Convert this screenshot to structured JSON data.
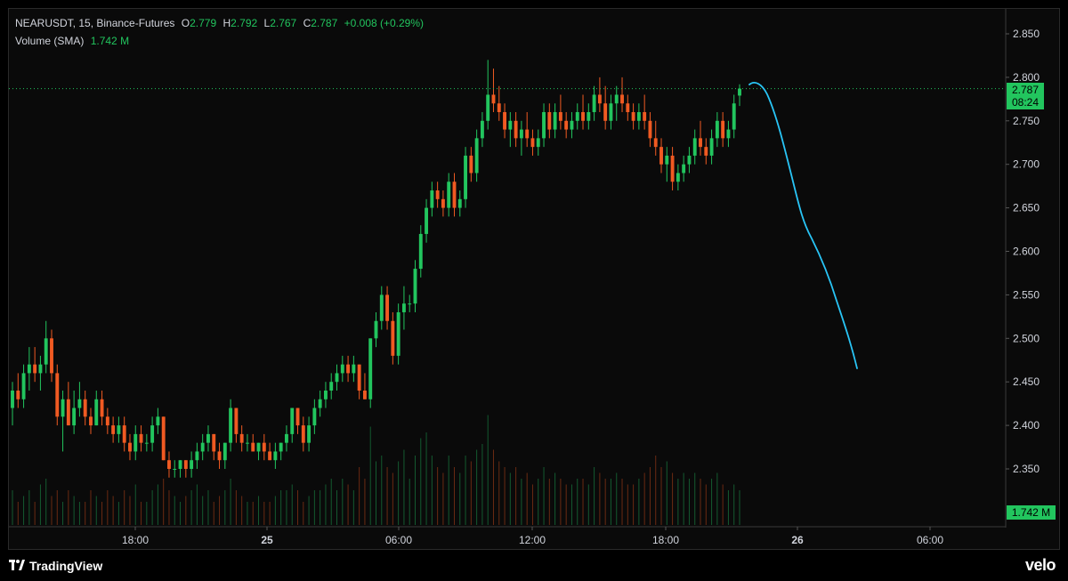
{
  "header": {
    "symbol": "NEARUSDT, 15, Binance-Futures",
    "open_label": "O",
    "open_value": "2.779",
    "high_label": "H",
    "high_value": "2.792",
    "low_label": "L",
    "low_value": "2.767",
    "close_label": "C",
    "close_value": "2.787",
    "change": "+0.008 (+0.29%)",
    "volume_label": "Volume (SMA)",
    "volume_value": "1.742 M"
  },
  "price_axis": {
    "ticks": [
      "2.850",
      "2.800",
      "2.750",
      "2.700",
      "2.650",
      "2.600",
      "2.550",
      "2.500",
      "2.450",
      "2.400",
      "2.350"
    ],
    "current_price": "2.787",
    "countdown": "08:24",
    "volume_tag": "1.742 M"
  },
  "time_axis": {
    "labels": [
      "18:00",
      "25",
      "06:00",
      "12:00",
      "18:00",
      "26",
      "06:00"
    ]
  },
  "colors": {
    "up": "#22c55e",
    "down": "#f05a22",
    "drawing": "#29c5f6",
    "background": "#0a0a0a",
    "price_line": "#22c55e"
  },
  "footer": {
    "brand_left": "TradingView",
    "brand_left_icon": "tradingview-logo-icon",
    "brand_right": "velo"
  },
  "chart_data": {
    "type": "candlestick",
    "symbol": "NEARUSDT",
    "interval": "15",
    "exchange": "Binance-Futures",
    "ylim": [
      2.33,
      2.87
    ],
    "candles": [
      [
        2.42,
        2.45,
        2.4,
        2.44
      ],
      [
        2.44,
        2.46,
        2.42,
        2.43
      ],
      [
        2.43,
        2.47,
        2.42,
        2.46
      ],
      [
        2.46,
        2.49,
        2.44,
        2.47
      ],
      [
        2.47,
        2.49,
        2.45,
        2.46
      ],
      [
        2.46,
        2.48,
        2.44,
        2.47
      ],
      [
        2.47,
        2.52,
        2.46,
        2.5
      ],
      [
        2.5,
        2.51,
        2.45,
        2.46
      ],
      [
        2.46,
        2.47,
        2.4,
        2.41
      ],
      [
        2.41,
        2.44,
        2.37,
        2.43
      ],
      [
        2.43,
        2.45,
        2.4,
        2.4
      ],
      [
        2.4,
        2.44,
        2.39,
        2.42
      ],
      [
        2.42,
        2.45,
        2.41,
        2.43
      ],
      [
        2.43,
        2.44,
        2.4,
        2.41
      ],
      [
        2.41,
        2.42,
        2.39,
        2.4
      ],
      [
        2.4,
        2.44,
        2.4,
        2.43
      ],
      [
        2.43,
        2.44,
        2.4,
        2.41
      ],
      [
        2.41,
        2.42,
        2.39,
        2.4
      ],
      [
        2.4,
        2.41,
        2.38,
        2.39
      ],
      [
        2.39,
        2.41,
        2.38,
        2.4
      ],
      [
        2.4,
        2.41,
        2.37,
        2.38
      ],
      [
        2.38,
        2.39,
        2.36,
        2.37
      ],
      [
        2.37,
        2.4,
        2.36,
        2.39
      ],
      [
        2.39,
        2.4,
        2.37,
        2.38
      ],
      [
        2.38,
        2.39,
        2.37,
        2.38
      ],
      [
        2.38,
        2.41,
        2.37,
        2.4
      ],
      [
        2.4,
        2.42,
        2.39,
        2.41
      ],
      [
        2.41,
        2.41,
        2.36,
        2.36
      ],
      [
        2.36,
        2.37,
        2.34,
        2.35
      ],
      [
        2.35,
        2.36,
        2.34,
        2.35
      ],
      [
        2.35,
        2.36,
        2.34,
        2.36
      ],
      [
        2.36,
        2.36,
        2.34,
        2.35
      ],
      [
        2.35,
        2.37,
        2.34,
        2.36
      ],
      [
        2.36,
        2.38,
        2.35,
        2.37
      ],
      [
        2.37,
        2.39,
        2.36,
        2.38
      ],
      [
        2.38,
        2.4,
        2.37,
        2.39
      ],
      [
        2.39,
        2.39,
        2.36,
        2.37
      ],
      [
        2.37,
        2.38,
        2.35,
        2.36
      ],
      [
        2.36,
        2.38,
        2.35,
        2.38
      ],
      [
        2.38,
        2.43,
        2.37,
        2.42
      ],
      [
        2.42,
        2.42,
        2.38,
        2.39
      ],
      [
        2.39,
        2.4,
        2.37,
        2.38
      ],
      [
        2.38,
        2.39,
        2.37,
        2.38
      ],
      [
        2.38,
        2.39,
        2.37,
        2.37
      ],
      [
        2.37,
        2.38,
        2.36,
        2.38
      ],
      [
        2.38,
        2.39,
        2.36,
        2.37
      ],
      [
        2.37,
        2.38,
        2.36,
        2.36
      ],
      [
        2.36,
        2.38,
        2.35,
        2.37
      ],
      [
        2.37,
        2.38,
        2.36,
        2.38
      ],
      [
        2.38,
        2.4,
        2.37,
        2.39
      ],
      [
        2.39,
        2.42,
        2.38,
        2.42
      ],
      [
        2.42,
        2.42,
        2.39,
        2.4
      ],
      [
        2.4,
        2.41,
        2.37,
        2.38
      ],
      [
        2.38,
        2.41,
        2.37,
        2.4
      ],
      [
        2.4,
        2.43,
        2.39,
        2.42
      ],
      [
        2.42,
        2.44,
        2.41,
        2.43
      ],
      [
        2.43,
        2.45,
        2.42,
        2.44
      ],
      [
        2.44,
        2.46,
        2.43,
        2.45
      ],
      [
        2.45,
        2.47,
        2.44,
        2.46
      ],
      [
        2.46,
        2.48,
        2.45,
        2.47
      ],
      [
        2.47,
        2.48,
        2.45,
        2.46
      ],
      [
        2.46,
        2.48,
        2.45,
        2.47
      ],
      [
        2.47,
        2.47,
        2.43,
        2.44
      ],
      [
        2.44,
        2.46,
        2.43,
        2.43
      ],
      [
        2.43,
        2.5,
        2.42,
        2.5
      ],
      [
        2.5,
        2.53,
        2.49,
        2.52
      ],
      [
        2.52,
        2.56,
        2.51,
        2.55
      ],
      [
        2.55,
        2.56,
        2.51,
        2.52
      ],
      [
        2.52,
        2.53,
        2.47,
        2.48
      ],
      [
        2.48,
        2.54,
        2.47,
        2.53
      ],
      [
        2.53,
        2.56,
        2.51,
        2.54
      ],
      [
        2.54,
        2.55,
        2.53,
        2.54
      ],
      [
        2.54,
        2.59,
        2.53,
        2.58
      ],
      [
        2.58,
        2.63,
        2.57,
        2.62
      ],
      [
        2.62,
        2.66,
        2.61,
        2.65
      ],
      [
        2.65,
        2.68,
        2.64,
        2.67
      ],
      [
        2.67,
        2.68,
        2.65,
        2.66
      ],
      [
        2.66,
        2.67,
        2.64,
        2.65
      ],
      [
        2.65,
        2.69,
        2.64,
        2.68
      ],
      [
        2.68,
        2.69,
        2.64,
        2.65
      ],
      [
        2.65,
        2.67,
        2.64,
        2.66
      ],
      [
        2.66,
        2.72,
        2.65,
        2.71
      ],
      [
        2.71,
        2.72,
        2.68,
        2.69
      ],
      [
        2.69,
        2.74,
        2.68,
        2.73
      ],
      [
        2.73,
        2.76,
        2.72,
        2.75
      ],
      [
        2.75,
        2.82,
        2.74,
        2.78
      ],
      [
        2.78,
        2.81,
        2.76,
        2.77
      ],
      [
        2.77,
        2.79,
        2.75,
        2.76
      ],
      [
        2.76,
        2.77,
        2.73,
        2.74
      ],
      [
        2.74,
        2.76,
        2.72,
        2.75
      ],
      [
        2.75,
        2.76,
        2.72,
        2.73
      ],
      [
        2.73,
        2.75,
        2.71,
        2.74
      ],
      [
        2.74,
        2.76,
        2.72,
        2.73
      ],
      [
        2.73,
        2.74,
        2.71,
        2.72
      ],
      [
        2.72,
        2.74,
        2.71,
        2.73
      ],
      [
        2.73,
        2.77,
        2.72,
        2.76
      ],
      [
        2.76,
        2.77,
        2.73,
        2.74
      ],
      [
        2.74,
        2.77,
        2.73,
        2.76
      ],
      [
        2.76,
        2.78,
        2.74,
        2.75
      ],
      [
        2.75,
        2.76,
        2.73,
        2.74
      ],
      [
        2.74,
        2.76,
        2.73,
        2.75
      ],
      [
        2.75,
        2.77,
        2.74,
        2.76
      ],
      [
        2.76,
        2.78,
        2.74,
        2.75
      ],
      [
        2.75,
        2.77,
        2.74,
        2.76
      ],
      [
        2.76,
        2.79,
        2.75,
        2.78
      ],
      [
        2.78,
        2.8,
        2.76,
        2.77
      ],
      [
        2.77,
        2.79,
        2.74,
        2.75
      ],
      [
        2.75,
        2.78,
        2.74,
        2.77
      ],
      [
        2.77,
        2.79,
        2.75,
        2.78
      ],
      [
        2.78,
        2.8,
        2.76,
        2.77
      ],
      [
        2.77,
        2.78,
        2.75,
        2.76
      ],
      [
        2.76,
        2.77,
        2.74,
        2.75
      ],
      [
        2.75,
        2.77,
        2.74,
        2.76
      ],
      [
        2.76,
        2.78,
        2.74,
        2.75
      ],
      [
        2.75,
        2.76,
        2.72,
        2.73
      ],
      [
        2.73,
        2.75,
        2.71,
        2.72
      ],
      [
        2.72,
        2.73,
        2.69,
        2.7
      ],
      [
        2.7,
        2.72,
        2.68,
        2.71
      ],
      [
        2.71,
        2.72,
        2.67,
        2.68
      ],
      [
        2.68,
        2.7,
        2.67,
        2.69
      ],
      [
        2.69,
        2.71,
        2.68,
        2.7
      ],
      [
        2.7,
        2.72,
        2.69,
        2.71
      ],
      [
        2.71,
        2.74,
        2.7,
        2.73
      ],
      [
        2.73,
        2.75,
        2.71,
        2.72
      ],
      [
        2.72,
        2.73,
        2.7,
        2.71
      ],
      [
        2.71,
        2.74,
        2.7,
        2.73
      ],
      [
        2.73,
        2.76,
        2.72,
        2.75
      ],
      [
        2.75,
        2.76,
        2.72,
        2.73
      ],
      [
        2.73,
        2.75,
        2.72,
        2.74
      ],
      [
        2.74,
        2.78,
        2.73,
        2.77
      ],
      [
        2.779,
        2.792,
        2.767,
        2.787
      ]
    ],
    "volume": [
      0.3,
      0.2,
      0.25,
      0.3,
      0.2,
      0.35,
      0.4,
      0.25,
      0.3,
      0.2,
      0.3,
      0.25,
      0.2,
      0.2,
      0.3,
      0.25,
      0.2,
      0.3,
      0.25,
      0.2,
      0.3,
      0.25,
      0.35,
      0.2,
      0.2,
      0.3,
      0.35,
      0.4,
      0.3,
      0.25,
      0.2,
      0.25,
      0.3,
      0.35,
      0.25,
      0.3,
      0.2,
      0.25,
      0.3,
      0.4,
      0.3,
      0.25,
      0.2,
      0.2,
      0.25,
      0.2,
      0.2,
      0.25,
      0.3,
      0.3,
      0.35,
      0.3,
      0.2,
      0.25,
      0.3,
      0.3,
      0.35,
      0.4,
      0.3,
      0.4,
      0.35,
      0.3,
      0.5,
      0.4,
      0.85,
      0.55,
      0.6,
      0.5,
      0.45,
      0.55,
      0.65,
      0.4,
      0.6,
      0.75,
      0.8,
      0.6,
      0.5,
      0.45,
      0.6,
      0.5,
      0.45,
      0.6,
      0.55,
      0.65,
      0.7,
      0.95,
      0.65,
      0.55,
      0.5,
      0.45,
      0.5,
      0.4,
      0.45,
      0.35,
      0.4,
      0.5,
      0.4,
      0.45,
      0.4,
      0.35,
      0.35,
      0.4,
      0.4,
      0.35,
      0.5,
      0.45,
      0.4,
      0.4,
      0.45,
      0.4,
      0.35,
      0.35,
      0.4,
      0.45,
      0.5,
      0.6,
      0.5,
      0.55,
      0.45,
      0.4,
      0.45,
      0.4,
      0.45,
      0.4,
      0.35,
      0.4,
      0.45,
      0.35,
      0.3,
      0.35,
      0.3
    ]
  }
}
